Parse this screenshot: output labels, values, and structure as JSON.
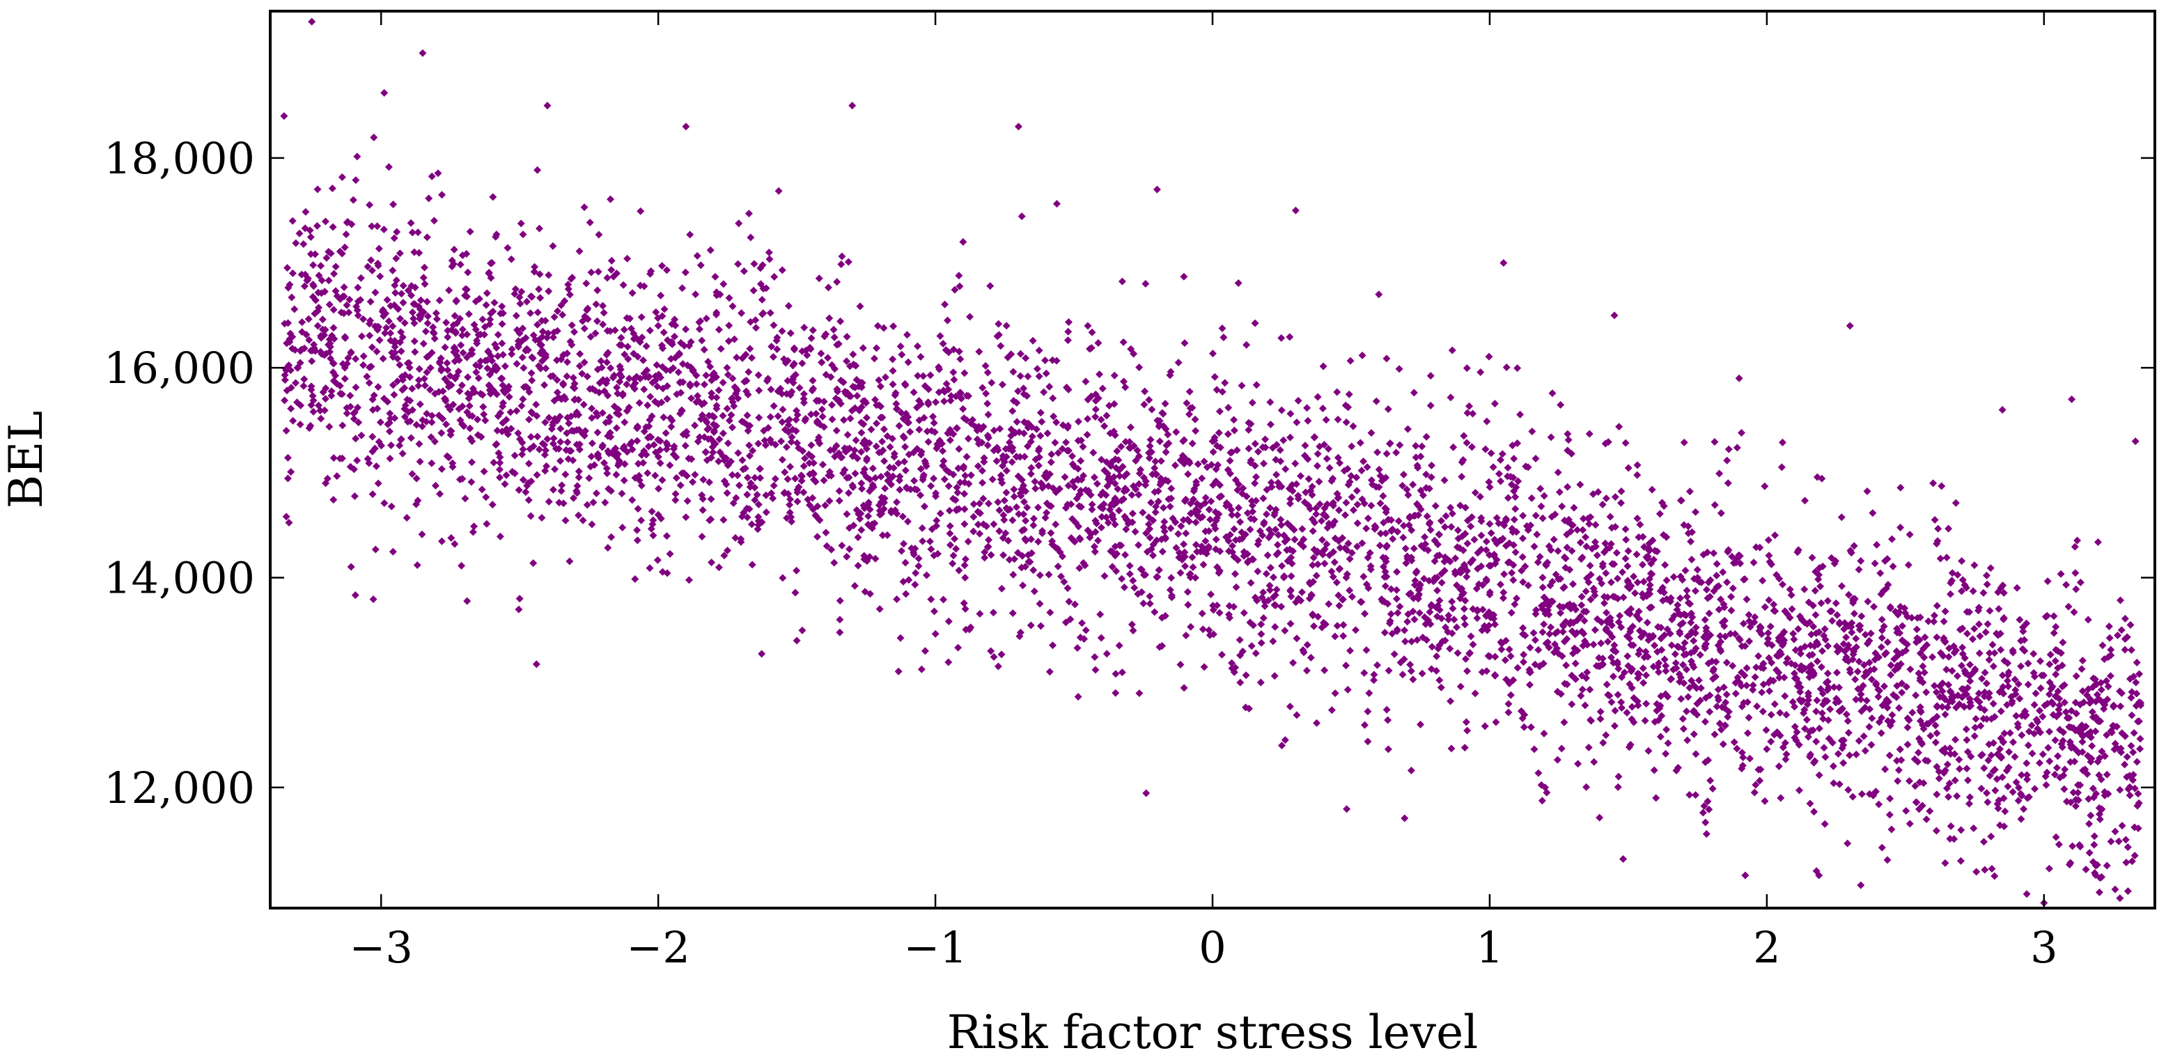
{
  "chart_data": {
    "type": "scatter",
    "title": "",
    "xlabel": "Risk factor stress level",
    "ylabel": "BEL",
    "xlim": [
      -3.4,
      3.4
    ],
    "ylim": [
      10850,
      19400
    ],
    "xticks": [
      -3,
      -2,
      -1,
      0,
      1,
      2,
      3
    ],
    "xtick_labels": [
      "−3",
      "−2",
      "−1",
      "0",
      "1",
      "2",
      "3"
    ],
    "yticks": [
      12000,
      14000,
      16000,
      18000
    ],
    "ytick_labels": [
      "12,000",
      "14,000",
      "16,000",
      "18,000"
    ],
    "grid": false,
    "legend": null,
    "marker": "diamond",
    "marker_color": "#800080",
    "series": [
      {
        "name": "BEL",
        "color": "#800080",
        "trend_anchor_x": [
          -3.4,
          -2.0,
          -1.0,
          0.0,
          1.0,
          2.0,
          3.0,
          3.35
        ],
        "trend_anchor_y": [
          16300,
          15600,
          15100,
          14600,
          14000,
          13300,
          12600,
          12400
        ],
        "points": [
          [
            -3.35,
            18400
          ],
          [
            -3.3,
            16000
          ],
          [
            -3.25,
            19300
          ],
          [
            -3.2,
            14900
          ],
          [
            -3.1,
            17600
          ],
          [
            -2.95,
            16200
          ],
          [
            -2.85,
            19000
          ],
          [
            -2.75,
            15400
          ],
          [
            -2.6,
            17000
          ],
          [
            -2.5,
            13800
          ],
          [
            -2.4,
            18500
          ],
          [
            -2.3,
            15700
          ],
          [
            -2.15,
            16900
          ],
          [
            -2.0,
            14600
          ],
          [
            -1.9,
            18300
          ],
          [
            -1.8,
            15900
          ],
          [
            -1.6,
            17100
          ],
          [
            -1.5,
            13400
          ],
          [
            -1.4,
            16300
          ],
          [
            -1.3,
            18500
          ],
          [
            -1.2,
            14600
          ],
          [
            -1.05,
            15200
          ],
          [
            -0.9,
            17200
          ],
          [
            -0.8,
            13300
          ],
          [
            -0.7,
            18300
          ],
          [
            -0.6,
            15000
          ],
          [
            -0.45,
            16400
          ],
          [
            -0.35,
            12900
          ],
          [
            -0.2,
            17700
          ],
          [
            -0.1,
            14200
          ],
          [
            0.0,
            15300
          ],
          [
            0.1,
            13000
          ],
          [
            0.25,
            12400
          ],
          [
            0.3,
            17500
          ],
          [
            0.45,
            14800
          ],
          [
            0.6,
            16700
          ],
          [
            0.75,
            12600
          ],
          [
            0.9,
            15100
          ],
          [
            1.05,
            17000
          ],
          [
            1.2,
            12000
          ],
          [
            1.3,
            14500
          ],
          [
            1.45,
            16500
          ],
          [
            1.6,
            11900
          ],
          [
            1.75,
            14000
          ],
          [
            1.9,
            15900
          ],
          [
            2.05,
            11900
          ],
          [
            2.2,
            13300
          ],
          [
            2.3,
            16400
          ],
          [
            2.45,
            11600
          ],
          [
            2.6,
            14900
          ],
          [
            2.7,
            11300
          ],
          [
            2.85,
            15600
          ],
          [
            3.0,
            10900
          ],
          [
            3.05,
            13300
          ],
          [
            3.1,
            15700
          ],
          [
            3.2,
            11000
          ],
          [
            3.28,
            13500
          ],
          [
            3.33,
            15300
          ]
        ]
      }
    ],
    "synthetic_fill": {
      "count": 5200,
      "seed": 424242,
      "spread": 1150,
      "spread_jitter": 650
    }
  }
}
